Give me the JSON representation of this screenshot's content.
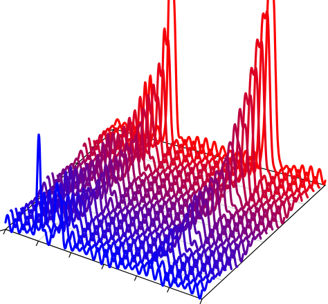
{
  "chart_data": {
    "type": "line",
    "subtype": "3d-waterfall",
    "title": "",
    "xlabel": "",
    "ylabel": "",
    "zlabel": "",
    "x_range": [
      0,
      10
    ],
    "z_range": [
      0,
      1
    ],
    "grid": true,
    "legend": "none",
    "tick_labels_shown": false,
    "n_traces": 22,
    "color_gradient": {
      "first_trace": "#0000ff",
      "last_trace": "#ff0000"
    },
    "ripple": {
      "amplitude": 0.05,
      "cycles": 26
    },
    "peaks": [
      {
        "center": 1.7,
        "width": 0.08,
        "amplitude_by_trace": [
          1.0,
          0.38,
          0.36,
          0.34,
          0.33,
          0.32,
          0.31,
          0.3,
          0.29,
          0.28,
          0.28,
          0.28,
          0.28,
          0.29,
          0.3,
          0.31,
          0.33,
          0.35,
          0.38,
          0.42,
          0.47,
          0.52
        ]
      },
      {
        "center": 2.6,
        "width": 0.08,
        "amplitude_by_trace": [
          0.62,
          0.3,
          0.28,
          0.26,
          0.24,
          0.23,
          0.22,
          0.22,
          0.22,
          0.23,
          0.24,
          0.26,
          0.28,
          0.31,
          0.34,
          0.38,
          0.43,
          0.5,
          0.6,
          0.78,
          1.05,
          1.55
        ]
      },
      {
        "center": 2.8,
        "width": 0.09,
        "amplitude_by_trace": [
          0.35,
          0.25,
          0.23,
          0.22,
          0.21,
          0.2,
          0.2,
          0.2,
          0.2,
          0.21,
          0.22,
          0.24,
          0.26,
          0.28,
          0.31,
          0.35,
          0.4,
          0.46,
          0.56,
          0.72,
          0.95,
          1.35
        ]
      },
      {
        "center": 7.3,
        "width": 0.12,
        "amplitude_by_trace": [
          0.06,
          0.1,
          0.14,
          0.17,
          0.2,
          0.22,
          0.24,
          0.26,
          0.28,
          0.3,
          0.33,
          0.36,
          0.4,
          0.45,
          0.52,
          0.6,
          0.72,
          0.88,
          1.08,
          1.3,
          1.52,
          1.7
        ]
      },
      {
        "center": 7.55,
        "width": 0.1,
        "amplitude_by_trace": [
          0.04,
          0.07,
          0.1,
          0.12,
          0.14,
          0.16,
          0.18,
          0.2,
          0.22,
          0.24,
          0.27,
          0.3,
          0.33,
          0.37,
          0.42,
          0.5,
          0.6,
          0.74,
          0.92,
          1.12,
          1.32,
          1.5
        ]
      }
    ]
  }
}
